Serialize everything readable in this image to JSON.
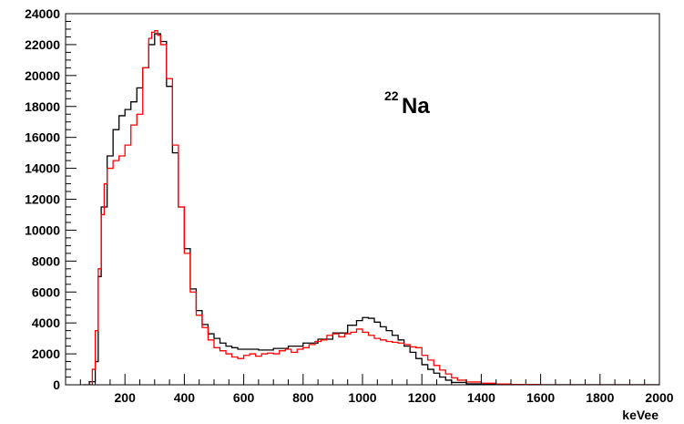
{
  "chart_data": {
    "type": "line",
    "title": "",
    "xlabel": "keVee",
    "ylabel": "",
    "xlim": [
      0,
      2000
    ],
    "ylim": [
      0,
      24000
    ],
    "xticks": [
      200,
      400,
      600,
      800,
      1000,
      1200,
      1400,
      1600,
      1800,
      2000
    ],
    "xtick_labels": [
      "200",
      "400",
      "600",
      "800",
      "1000",
      "1200",
      "1400",
      "1600",
      "1800",
      "2000"
    ],
    "yticks": [
      0,
      2000,
      4000,
      6000,
      8000,
      10000,
      12000,
      14000,
      16000,
      18000,
      20000,
      22000,
      24000
    ],
    "ytick_labels": [
      "0",
      "2000",
      "4000",
      "6000",
      "8000",
      "10000",
      "12000",
      "14000",
      "16000",
      "18000",
      "20000",
      "22000",
      "24000"
    ],
    "grid": false,
    "annotation": {
      "superscript": "22",
      "text": "Na"
    },
    "series": [
      {
        "color": "#000000",
        "x": [
          60,
          80,
          100,
          110,
          120,
          140,
          160,
          180,
          200,
          220,
          240,
          260,
          280,
          300,
          310,
          320,
          340,
          360,
          380,
          400,
          420,
          440,
          460,
          480,
          500,
          520,
          540,
          560,
          580,
          600,
          650,
          700,
          750,
          800,
          850,
          900,
          950,
          980,
          1000,
          1020,
          1040,
          1060,
          1080,
          1100,
          1120,
          1140,
          1160,
          1180,
          1200,
          1220,
          1240,
          1260,
          1280,
          1300,
          1350,
          1400,
          1500,
          1600,
          1800,
          2000
        ],
        "y": [
          0,
          200,
          1500,
          7000,
          11500,
          14800,
          16500,
          17400,
          17800,
          18300,
          19200,
          20500,
          22000,
          22700,
          22700,
          22200,
          19300,
          15000,
          11500,
          8800,
          6200,
          4800,
          3900,
          3300,
          3000,
          2700,
          2500,
          2400,
          2300,
          2300,
          2250,
          2350,
          2500,
          2700,
          2950,
          3350,
          3850,
          4150,
          4350,
          4300,
          4050,
          3750,
          3500,
          3200,
          2900,
          2500,
          2100,
          1700,
          1300,
          1000,
          750,
          500,
          300,
          150,
          60,
          20,
          0,
          0,
          0,
          0
        ]
      },
      {
        "color": "#ff0000",
        "x": [
          80,
          90,
          100,
          110,
          120,
          130,
          140,
          160,
          180,
          200,
          220,
          240,
          260,
          280,
          290,
          300,
          310,
          320,
          340,
          360,
          380,
          400,
          420,
          440,
          460,
          480,
          500,
          520,
          540,
          560,
          580,
          600,
          620,
          640,
          660,
          680,
          700,
          720,
          740,
          760,
          780,
          800,
          820,
          840,
          860,
          880,
          900,
          920,
          940,
          960,
          980,
          1000,
          1020,
          1040,
          1060,
          1080,
          1100,
          1120,
          1140,
          1160,
          1180,
          1200,
          1220,
          1240,
          1260,
          1280,
          1300,
          1320,
          1350,
          1400,
          1450,
          1500,
          1600,
          2000
        ],
        "y": [
          0,
          1000,
          3500,
          7500,
          11000,
          13000,
          14000,
          14500,
          14800,
          15500,
          16800,
          17500,
          20500,
          22400,
          22800,
          22900,
          22600,
          22000,
          19800,
          15500,
          11500,
          8500,
          6000,
          4500,
          3700,
          2900,
          2400,
          2200,
          2000,
          1800,
          1700,
          1900,
          2000,
          1850,
          2000,
          2050,
          2000,
          2200,
          2300,
          2100,
          2300,
          2400,
          2600,
          2800,
          2900,
          3200,
          3300,
          3100,
          3300,
          3400,
          3600,
          3400,
          3200,
          3000,
          2900,
          2800,
          2750,
          2700,
          2600,
          2450,
          2400,
          1900,
          1600,
          1250,
          950,
          700,
          450,
          300,
          180,
          100,
          50,
          20,
          0,
          0
        ]
      }
    ]
  }
}
